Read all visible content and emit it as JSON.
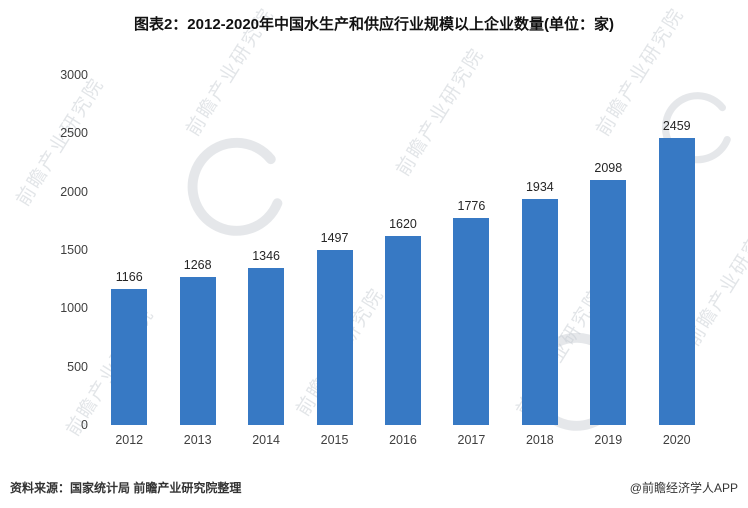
{
  "chart_data": {
    "type": "bar",
    "title": "图表2：2012-2020年中国水生产和供应行业规模以上企业数量(单位：家)",
    "categories": [
      "2012",
      "2013",
      "2014",
      "2015",
      "2016",
      "2017",
      "2018",
      "2019",
      "2020"
    ],
    "values": [
      1166,
      1268,
      1346,
      1497,
      1620,
      1776,
      1934,
      2098,
      2459
    ],
    "xlabel": "",
    "ylabel": "",
    "ylim": [
      0,
      3000
    ],
    "yticks": [
      0,
      500,
      1000,
      1500,
      2000,
      2500,
      3000
    ],
    "grid": false,
    "legend": "none",
    "bar_color": "#3779c4",
    "value_labels": true
  },
  "footer": {
    "source": "资料来源：国家统计局 前瞻产业研究院整理",
    "credit": "@前瞻经济学人APP"
  },
  "watermark": {
    "text": "前瞻产业研究院",
    "logo": "qianzhan-circle-mark"
  }
}
